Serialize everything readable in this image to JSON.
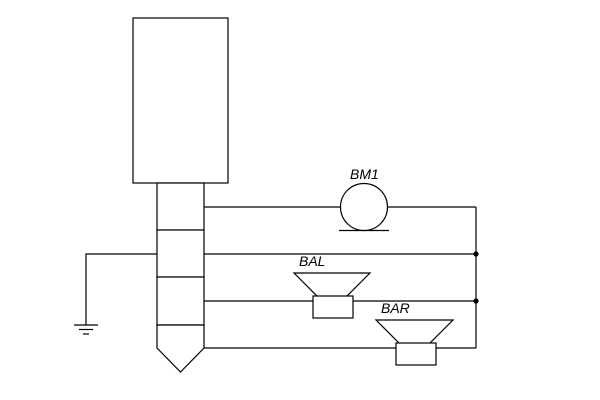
{
  "components": {
    "microphone": {
      "label": "BM1",
      "icon": "microphone-icon"
    },
    "speaker_left": {
      "label": "BAL",
      "icon": "speaker-icon"
    },
    "speaker_right": {
      "label": "BAR",
      "icon": "speaker-icon"
    },
    "ground": {
      "icon": "ground-icon"
    },
    "jack": {
      "icon": "trrs-jack-plug-icon",
      "segments": 4
    }
  }
}
